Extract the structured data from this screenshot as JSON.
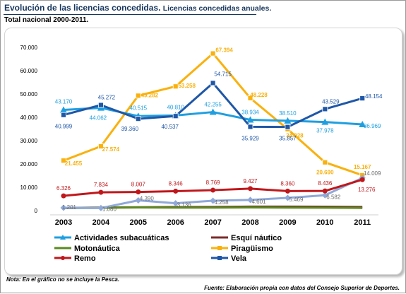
{
  "header": {
    "title": "Evolución de las licencias concedidas.",
    "title_sub": "Licencias concedidas anuales.",
    "subtitle": "Total nacional 2000-2011."
  },
  "footer": {
    "note": "Nota: En el gráfico no se incluye la Pesca.",
    "source": "Fuente: Elaboración propia con datos del Consejo Superior de Deportes."
  },
  "chart_data": {
    "type": "line",
    "title": "",
    "xlabel": "",
    "ylabel": "",
    "categories": [
      "2003",
      "2004",
      "2005",
      "2006",
      "2007",
      "2008",
      "2009",
      "2010",
      "2011"
    ],
    "ylim": [
      0,
      70000
    ],
    "yticks": [
      0,
      10000,
      20000,
      30000,
      40000,
      50000,
      60000,
      70000
    ],
    "ytick_labels": [
      "0",
      "10.000",
      "20.000",
      "30.000",
      "40.000",
      "50.000",
      "60.000",
      "70.000"
    ],
    "grid": false,
    "legend_position": "bottom",
    "series": [
      {
        "name": "Actividades subacuáticas",
        "color": "#1f9fe0",
        "marker": "triangle",
        "values": [
          43170,
          44062,
          40515,
          40810,
          42255,
          38934,
          38510,
          37978,
          36969
        ],
        "labels": [
          "43.170",
          "44.062",
          "40.515",
          "40.810",
          "42.255",
          "38.934",
          "38.510",
          "37.978",
          "36.969"
        ]
      },
      {
        "name": "Esquí náutico",
        "color": "#7b2c2c",
        "marker": "none",
        "values": [
          1150,
          1300,
          1450,
          1500,
          1550,
          1700,
          1700,
          1650,
          1550
        ],
        "labels": []
      },
      {
        "name": "Motonáutica",
        "color": "#5a8a1e",
        "marker": "none",
        "values": [
          1050,
          1200,
          1350,
          1300,
          1300,
          1350,
          1300,
          1250,
          1150
        ],
        "labels": []
      },
      {
        "name": "Piragüismo",
        "color": "#f9b10e",
        "marker": "square",
        "values": [
          21455,
          27574,
          49282,
          53258,
          67394,
          48228,
          34928,
          20690,
          15167
        ],
        "labels": [
          "21.455",
          "27.574",
          "49.282",
          "53.258",
          "67.394",
          "48.228",
          "34.928",
          "20.690",
          "15.167"
        ]
      },
      {
        "name": "Remo",
        "color": "#c0171b",
        "marker": "circle",
        "values": [
          6326,
          7834,
          8007,
          8346,
          8769,
          9427,
          8360,
          8436,
          13276
        ],
        "labels": [
          "6.326",
          "7.834",
          "8.007",
          "8.346",
          "8.769",
          "9.427",
          "8.360",
          "8.436",
          "13.276"
        ]
      },
      {
        "name": "Vela",
        "color": "#1f57a7",
        "marker": "square",
        "values": [
          40999,
          45272,
          39360,
          40537,
          54715,
          35929,
          35857,
          43529,
          48154
        ],
        "labels": [
          "40.999",
          "45.272",
          "39.360",
          "40.537",
          "54.715",
          "35.929",
          "35.857",
          "43.529",
          "48.154"
        ]
      },
      {
        "name": "",
        "color": "#8fa9d9",
        "marker": "diamond",
        "values": [
          1201,
          1080,
          4390,
          3136,
          4258,
          4601,
          5469,
          6582,
          14009
        ],
        "labels": [
          "1.201",
          "1.080",
          "4.390",
          "3.136",
          "4.258",
          "4.601",
          "5.469",
          "6.582",
          "14.009"
        ]
      }
    ]
  }
}
